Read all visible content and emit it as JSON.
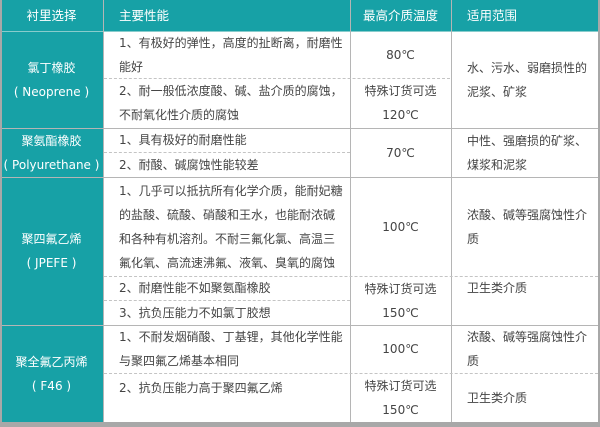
{
  "header": {
    "col1": "衬里选择",
    "col2": "主要性能",
    "col3": "最高介质温度",
    "col4": "适用范围"
  },
  "rows": [
    {
      "lining": "氯丁橡胶\n( Neoprene )",
      "perf": [
        "1、有极好的弹性，高度的扯断离，耐磨性\n能好",
        "2、耐一般低浓度酸、碱、盐介质的腐蚀，\n不耐氧化性介质的腐蚀"
      ],
      "temp": [
        "80℃",
        "特殊订货可选\n120℃"
      ],
      "scope": [
        "水、污水、弱磨损性的\n泥浆、矿浆"
      ]
    },
    {
      "lining": "聚氨酯橡胶\n( Polyurethane )",
      "perf": [
        "1、具有极好的耐磨性能",
        "2、耐酸、碱腐蚀性能较差"
      ],
      "temp": [
        "70℃"
      ],
      "scope": [
        "中性、强磨损的矿浆、\n煤浆和泥浆"
      ]
    },
    {
      "lining": "聚四氟乙烯\n( JPEFE )",
      "perf": [
        "1、几乎可以抵抗所有化学介质，能耐妃糖\n的盐酸、硫酸、硝酸和王水，也能耐浓碱\n和各种有机溶剂。不耐三氟化氯、高温三\n氟化氧、高流速沸氟、液氧、臭氧的腐蚀",
        "2、耐磨性能不如聚氨酯橡胶",
        "3、抗负压能力不如氯丁胶想"
      ],
      "temp": [
        "100℃",
        "特殊订货可选\n150℃"
      ],
      "scope": [
        "浓酸、碱等强腐蚀性介\n质",
        "卫生类介质"
      ]
    },
    {
      "lining": "聚全氟乙丙烯\n( F46 )",
      "perf": [
        "1、不耐发烟硝酸、丁基锂，其他化学性能\n与聚四氟乙烯基本相同",
        "2、抗负压能力高于聚四氟乙烯"
      ],
      "temp": [
        "100℃",
        "特殊订货可选\n150℃"
      ],
      "scope": [
        "浓酸、碱等强腐蚀性介\n质",
        "卫生类介质"
      ]
    }
  ],
  "colors": {
    "teal": "#17a1a6",
    "grid": "#b5b5b5",
    "text": "#444444"
  }
}
